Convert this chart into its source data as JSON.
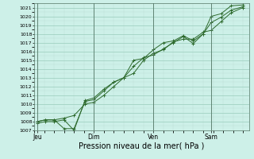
{
  "background_color": "#cdf0e8",
  "grid_major_color": "#99ccbb",
  "grid_minor_color": "#bbddd5",
  "line_color": "#2d6a2d",
  "marker_color": "#2d6a2d",
  "xlabel": "Pression niveau de la mer( hPa )",
  "ylim": [
    1007,
    1021.5
  ],
  "xlim_min": 0,
  "xlim_max": 10.8,
  "yticks": [
    1007,
    1008,
    1009,
    1010,
    1011,
    1012,
    1013,
    1014,
    1015,
    1016,
    1017,
    1018,
    1019,
    1020,
    1021
  ],
  "day_labels": [
    "Jeu",
    "Dim",
    "Ven",
    "Sam"
  ],
  "day_positions": [
    0.15,
    3.0,
    6.0,
    8.9
  ],
  "vline_positions": [
    0.15,
    3.0,
    6.0,
    8.9
  ],
  "series1_x": [
    0.15,
    0.55,
    1.0,
    1.5,
    2.0,
    2.55,
    3.0,
    3.5,
    4.0,
    4.5,
    5.0,
    5.5,
    6.0,
    6.5,
    7.0,
    7.5,
    8.0,
    8.5,
    8.9,
    9.4,
    9.9,
    10.5
  ],
  "series1_y": [
    1008.0,
    1008.2,
    1008.2,
    1007.2,
    1007.2,
    1010.3,
    1010.5,
    1011.5,
    1012.5,
    1013.0,
    1015.0,
    1015.2,
    1016.2,
    1017.0,
    1017.2,
    1017.8,
    1017.2,
    1018.0,
    1020.0,
    1020.3,
    1021.2,
    1021.3
  ],
  "series2_x": [
    0.15,
    0.55,
    1.0,
    1.5,
    2.0,
    2.55,
    3.0,
    3.5,
    4.0,
    4.5,
    5.0,
    5.5,
    6.0,
    6.5,
    7.0,
    7.5,
    8.0,
    8.5,
    8.9,
    9.4,
    9.9,
    10.5
  ],
  "series2_y": [
    1008.0,
    1008.2,
    1008.2,
    1008.4,
    1008.7,
    1010.0,
    1010.2,
    1011.0,
    1012.0,
    1013.0,
    1013.5,
    1015.0,
    1015.8,
    1016.2,
    1017.1,
    1017.4,
    1017.4,
    1018.2,
    1018.4,
    1019.4,
    1020.4,
    1021.0
  ],
  "series3_x": [
    0.15,
    0.55,
    1.0,
    1.5,
    2.0,
    2.55,
    3.0,
    3.5,
    4.0,
    4.5,
    5.0,
    5.5,
    6.0,
    6.5,
    7.0,
    7.5,
    8.0,
    8.5,
    8.9,
    9.4,
    9.9,
    10.5
  ],
  "series3_y": [
    1007.8,
    1008.0,
    1008.0,
    1008.2,
    1007.0,
    1010.4,
    1010.7,
    1011.7,
    1012.5,
    1013.0,
    1014.3,
    1015.3,
    1015.6,
    1016.3,
    1017.0,
    1017.7,
    1016.9,
    1018.0,
    1019.3,
    1019.9,
    1020.7,
    1021.1
  ],
  "ylabel_fontsize": 4.5,
  "xlabel_fontsize": 7.0,
  "xlabel_pad": 1,
  "tick_labelsize": 4.5,
  "line_width": 0.7,
  "marker_size": 2.5,
  "marker_ew": 0.7
}
